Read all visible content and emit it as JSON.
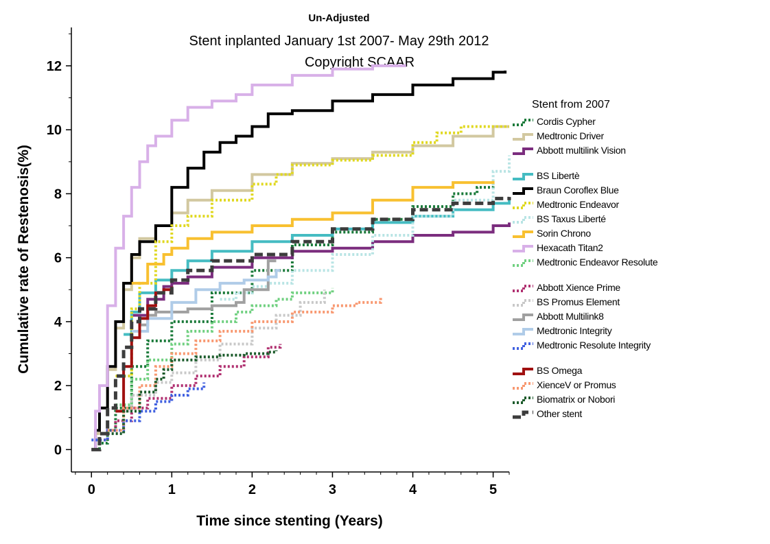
{
  "chart_data": {
    "type": "line",
    "title": "Un-Adjusted",
    "subtitle_lines": [
      "Stent inplanted January 1st 2007- May 29th 2012",
      "Copyright SCAAR"
    ],
    "xlabel": "Time since stenting (Years)",
    "ylabel": "Cumulative rate of Restenosis(%)",
    "xlim": [
      -0.25,
      5.2
    ],
    "ylim": [
      -0.7,
      13.2
    ],
    "x_ticks": [
      "0",
      "1",
      "2",
      "3",
      "4",
      "5"
    ],
    "y_ticks": [
      "0",
      "2",
      "4",
      "6",
      "8",
      "10",
      "12"
    ],
    "legend_title": "Stent from 2007",
    "legend_position": "right",
    "grid": false,
    "series": [
      {
        "name": "Cordis Cypher",
        "color": "#1a7a3a",
        "dash": "dot",
        "x": [
          0,
          0.1,
          0.2,
          0.3,
          0.5,
          0.7,
          1.0,
          1.5,
          2.0,
          2.5,
          3.0,
          3.5,
          4.0,
          4.5,
          4.8,
          5.0
        ],
        "y": [
          0,
          0.2,
          0.6,
          1.3,
          2.6,
          3.4,
          4.0,
          4.9,
          5.6,
          6.4,
          6.8,
          7.2,
          7.6,
          8.0,
          8.2,
          8.3
        ]
      },
      {
        "name": "Medtronic Driver",
        "color": "#d2c8a0",
        "dash": "solid",
        "x": [
          0,
          0.05,
          0.1,
          0.2,
          0.3,
          0.4,
          0.5,
          0.6,
          0.8,
          1.0,
          1.2,
          1.5,
          2.0,
          2.5,
          3.0,
          3.5,
          4.0,
          4.5,
          5.0,
          5.2
        ],
        "y": [
          0,
          0.5,
          1.3,
          2.5,
          3.8,
          5.0,
          6.0,
          6.6,
          7.0,
          7.4,
          7.8,
          8.1,
          8.6,
          8.95,
          9.1,
          9.3,
          9.5,
          9.8,
          10.1,
          10.1
        ]
      },
      {
        "name": "Abbott multilink Vision",
        "color": "#7b2d7e",
        "dash": "solid",
        "x": [
          0.5,
          0.7,
          0.9,
          1.0,
          1.2,
          1.5,
          2.0,
          2.5,
          3.0,
          3.5,
          4.0,
          4.5,
          5.0,
          5.2
        ],
        "y": [
          4.2,
          4.7,
          5.1,
          5.2,
          5.4,
          5.7,
          6.0,
          6.2,
          6.3,
          6.5,
          6.7,
          6.8,
          7.0,
          7.1
        ]
      },
      {
        "name": "BS Libertè",
        "color": "#45bcc2",
        "dash": "solid",
        "x": [
          0.4,
          0.5,
          0.6,
          0.8,
          1.0,
          1.2,
          1.5,
          2.0,
          2.5,
          3.0,
          3.5,
          4.0,
          4.5,
          5.0,
          5.2
        ],
        "y": [
          3.6,
          4.3,
          4.9,
          5.3,
          5.6,
          5.9,
          6.2,
          6.5,
          6.7,
          6.9,
          7.1,
          7.3,
          7.5,
          7.7,
          7.8
        ]
      },
      {
        "name": "Braun Coroflex Blue",
        "color": "#000000",
        "dash": "solid",
        "x": [
          0,
          0.05,
          0.1,
          0.2,
          0.3,
          0.4,
          0.5,
          0.6,
          0.8,
          1.0,
          1.2,
          1.4,
          1.6,
          1.8,
          2.0,
          2.2,
          2.5,
          3.0,
          3.5,
          4.0,
          4.5,
          5.0,
          5.15
        ],
        "y": [
          0,
          0.6,
          1.3,
          2.6,
          4.0,
          5.2,
          6.1,
          6.5,
          7.0,
          8.2,
          8.8,
          9.3,
          9.6,
          9.8,
          10.1,
          10.5,
          10.6,
          10.9,
          11.1,
          11.4,
          11.6,
          11.8,
          11.85
        ]
      },
      {
        "name": "Medtronic Endeavor",
        "color": "#e0d820",
        "dash": "dot",
        "x": [
          0.3,
          0.5,
          0.6,
          0.8,
          1.0,
          1.2,
          1.5,
          2.0,
          2.3,
          2.5,
          3.0,
          3.5,
          4.0,
          4.3,
          4.6,
          5.0,
          5.2
        ],
        "y": [
          2.3,
          4.4,
          5.2,
          6.5,
          7.0,
          7.3,
          7.8,
          8.3,
          8.6,
          8.9,
          9.05,
          9.2,
          9.6,
          9.9,
          10.1,
          10.1,
          10.1
        ]
      },
      {
        "name": "BS Taxus Liberté",
        "color": "#b8e4e4",
        "dash": "dot",
        "x": [
          1.6,
          1.8,
          2.0,
          2.2,
          2.5,
          3.0,
          3.5,
          4.0,
          4.5,
          5.0,
          5.2
        ],
        "y": [
          4.7,
          4.9,
          5.1,
          5.2,
          5.6,
          6.1,
          6.7,
          7.3,
          7.8,
          8.7,
          9.2
        ]
      },
      {
        "name": "Sorin Chrono",
        "color": "#f8c030",
        "dash": "solid",
        "x": [
          0.5,
          0.7,
          0.9,
          1.0,
          1.2,
          1.5,
          2.0,
          2.5,
          3.0,
          3.5,
          4.0,
          4.5,
          5.0
        ],
        "y": [
          5.2,
          5.8,
          6.1,
          6.3,
          6.6,
          6.8,
          7.0,
          7.2,
          7.4,
          7.8,
          8.2,
          8.35,
          8.4
        ]
      },
      {
        "name": "Hexacath Titan2",
        "color": "#d8b0e8",
        "dash": "solid",
        "x": [
          0,
          0.05,
          0.1,
          0.2,
          0.3,
          0.4,
          0.5,
          0.6,
          0.7,
          0.8,
          1.0,
          1.2,
          1.5,
          1.8,
          2.0,
          2.5,
          3.0,
          3.5,
          3.9
        ],
        "y": [
          0,
          1.2,
          2.0,
          4.5,
          6.3,
          7.3,
          8.2,
          9.0,
          9.5,
          9.8,
          10.3,
          10.7,
          10.9,
          11.1,
          11.4,
          11.7,
          11.9,
          12.0,
          12.05
        ]
      },
      {
        "name": "Medtronic Endeavor Resolute",
        "color": "#70d080",
        "dash": "dot",
        "x": [
          0.3,
          0.5,
          0.7,
          1.0,
          1.2,
          1.5,
          1.8,
          2.0,
          2.3,
          2.5,
          3.0
        ],
        "y": [
          1.4,
          2.2,
          2.8,
          3.3,
          3.7,
          4.0,
          4.3,
          4.5,
          4.7,
          4.9,
          5.05
        ]
      },
      {
        "name": "Abbott Xience Prime",
        "color": "#b03070",
        "dash": "dot",
        "x": [
          0.1,
          0.2,
          0.3,
          0.5,
          0.7,
          1.0,
          1.3,
          1.6,
          1.9,
          2.2,
          2.35
        ],
        "y": [
          0.3,
          0.6,
          0.9,
          1.3,
          1.6,
          2.0,
          2.3,
          2.6,
          2.9,
          3.2,
          3.3
        ]
      },
      {
        "name": "BS Promus Element",
        "color": "#c8c8c8",
        "dash": "dot",
        "x": [
          0.3,
          0.5,
          0.8,
          1.0,
          1.3,
          1.6,
          2.0,
          2.3,
          2.6,
          2.9
        ],
        "y": [
          1.2,
          1.7,
          2.1,
          2.4,
          2.8,
          3.3,
          3.8,
          4.2,
          4.6,
          5.0
        ]
      },
      {
        "name": "Abbott Multilink8",
        "color": "#a0a0a0",
        "dash": "solid",
        "x": [
          0.6,
          0.7,
          0.8,
          1.0,
          1.2,
          1.5,
          1.8,
          1.9,
          2.1,
          2.2,
          2.2,
          2.3
        ],
        "y": [
          3.9,
          4.2,
          4.3,
          4.3,
          4.4,
          4.5,
          4.6,
          5.0,
          5.0,
          5.0,
          5.9,
          5.9
        ]
      },
      {
        "name": "Medtronic Integrity",
        "color": "#b0cce8",
        "dash": "solid",
        "x": [
          0.5,
          0.7,
          1.0,
          1.3,
          1.6,
          1.9,
          2.2,
          2.3,
          2.35
        ],
        "y": [
          3.7,
          4.1,
          4.6,
          5.0,
          5.2,
          5.3,
          5.4,
          5.6,
          5.6
        ]
      },
      {
        "name": "Medtronic Resolute Integrity",
        "color": "#4060e0",
        "dash": "dot",
        "x": [
          0,
          0.2,
          0.4,
          0.6,
          0.8,
          1.0,
          1.2,
          1.4
        ],
        "y": [
          0.3,
          0.6,
          0.9,
          1.2,
          1.5,
          1.7,
          1.9,
          2.1
        ]
      },
      {
        "name": "BS Omega",
        "color": "#a01010",
        "dash": "solid",
        "x": [
          0.3,
          0.4,
          0.5,
          0.6,
          0.7,
          0.8,
          0.9,
          1.0
        ],
        "y": [
          1.2,
          2.6,
          3.5,
          4.1,
          4.5,
          4.9,
          5.0,
          5.1
        ]
      },
      {
        "name": "XienceV or Promus",
        "color": "#f89870",
        "dash": "dot",
        "x": [
          0.2,
          0.4,
          0.6,
          0.8,
          1.0,
          1.3,
          1.6,
          2.0,
          2.5,
          3.0,
          3.3,
          3.6
        ],
        "y": [
          0.6,
          1.3,
          2.0,
          2.6,
          3.0,
          3.4,
          3.7,
          4.0,
          4.3,
          4.5,
          4.6,
          4.8
        ]
      },
      {
        "name": "Biomatrix or Nobori",
        "color": "#1a5a2a",
        "dash": "dot",
        "x": [
          0.2,
          0.4,
          0.6,
          0.8,
          0.9,
          1.0,
          1.3,
          1.6,
          1.9,
          2.2,
          2.3
        ],
        "y": [
          0.5,
          1.2,
          1.8,
          2.2,
          2.5,
          2.8,
          2.9,
          2.95,
          3.0,
          3.05,
          3.1
        ]
      },
      {
        "name": "Other stent",
        "color": "#3c3c3c",
        "dash": "dash",
        "x": [
          0,
          0.1,
          0.2,
          0.3,
          0.4,
          0.5,
          0.6,
          0.8,
          1.0,
          1.2,
          1.5,
          2.0,
          2.5,
          3.0,
          3.5,
          4.0,
          4.5,
          5.0,
          5.2
        ],
        "y": [
          0,
          0.5,
          1.3,
          2.3,
          3.2,
          4.0,
          4.4,
          4.9,
          5.3,
          5.6,
          5.9,
          6.1,
          6.5,
          6.9,
          7.2,
          7.5,
          7.7,
          7.85,
          7.9
        ]
      }
    ]
  }
}
